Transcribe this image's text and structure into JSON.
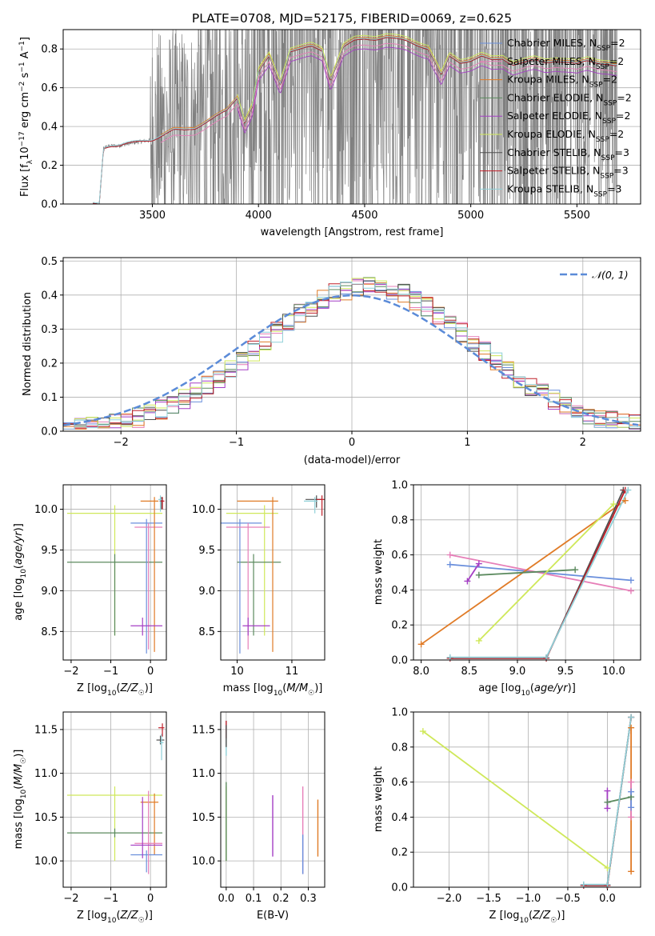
{
  "colors": {
    "Chabrier MILES": "#6a8fdc",
    "Salpeter MILES": "#e67fb8",
    "Kroupa MILES": "#e07b27",
    "Chabrier ELODIE": "#5b8a5e",
    "Salpeter ELODIE": "#a43fc4",
    "Kroupa ELODIE": "#cfe85a",
    "Chabrier STELIB": "#505050",
    "Salpeter STELIB": "#c0202a",
    "Kroupa STELIB": "#8fd0d8",
    "data": "#808080",
    "normal": "#5b8bd8"
  },
  "chart_data": [
    {
      "id": "spectrum",
      "type": "line",
      "title": "PLATE=0708, MJD=52175, FIBERID=0069, z=0.625",
      "xlabel": "wavelength [Angstrom, rest frame]",
      "ylabel": "Flux [f_λ 10^-17 erg cm^-2 s^-1 A^-1]",
      "xlim": [
        3080,
        5800
      ],
      "ylim": [
        0,
        0.9
      ],
      "xticks": [
        3500,
        4000,
        4500,
        5000,
        5500
      ],
      "yticks": [
        0.0,
        0.2,
        0.4,
        0.6,
        0.8
      ],
      "grid": true,
      "legend_position": "top-right",
      "legend": [
        {
          "label": "Chabrier MILES, N",
          "sub": "SSP",
          "suffix": "=2",
          "series": "Chabrier MILES"
        },
        {
          "label": "Salpeter MILES, N",
          "sub": "SSP",
          "suffix": "=2",
          "series": "Salpeter MILES"
        },
        {
          "label": "Kroupa MILES, N",
          "sub": "SSP",
          "suffix": "=2",
          "series": "Kroupa MILES"
        },
        {
          "label": "Chabrier ELODIE, N",
          "sub": "SSP",
          "suffix": "=2",
          "series": "Chabrier ELODIE"
        },
        {
          "label": "Salpeter ELODIE, N",
          "sub": "SSP",
          "suffix": "=2",
          "series": "Salpeter ELODIE"
        },
        {
          "label": "Kroupa ELODIE, N",
          "sub": "SSP",
          "suffix": "=2",
          "series": "Kroupa ELODIE"
        },
        {
          "label": "Chabrier STELIB, N",
          "sub": "SSP",
          "suffix": "=3",
          "series": "Chabrier STELIB"
        },
        {
          "label": "Salpeter STELIB, N",
          "sub": "SSP",
          "suffix": "=3",
          "series": "Salpeter STELIB"
        },
        {
          "label": "Kroupa STELIB, N",
          "sub": "SSP",
          "suffix": "=3",
          "series": "Kroupa STELIB"
        }
      ],
      "continuum": {
        "x": [
          3250,
          3270,
          3300,
          3340,
          3380,
          3430,
          3500,
          3560,
          3600,
          3650,
          3700,
          3750,
          3800,
          3850,
          3900,
          3935,
          3970,
          4000,
          4050,
          4102,
          4150,
          4200,
          4250,
          4300,
          4340,
          4400,
          4450,
          4500,
          4550,
          4600,
          4650,
          4700,
          4750,
          4800,
          4861,
          4900,
          4950,
          5000,
          5050,
          5100,
          5150,
          5200,
          5250,
          5300,
          5350,
          5400,
          5450,
          5500,
          5550,
          5600,
          5650,
          5680
        ],
        "y": [
          0.0,
          0.29,
          0.3,
          0.3,
          0.31,
          0.32,
          0.33,
          0.36,
          0.38,
          0.38,
          0.39,
          0.42,
          0.45,
          0.48,
          0.55,
          0.42,
          0.5,
          0.68,
          0.76,
          0.62,
          0.79,
          0.8,
          0.81,
          0.79,
          0.64,
          0.81,
          0.84,
          0.85,
          0.85,
          0.86,
          0.85,
          0.84,
          0.82,
          0.8,
          0.66,
          0.76,
          0.73,
          0.74,
          0.76,
          0.74,
          0.75,
          0.72,
          0.73,
          0.74,
          0.73,
          0.74,
          0.73,
          0.72,
          0.74,
          0.73,
          0.72,
          0.71
        ]
      },
      "model_offsets": {
        "Chabrier MILES": 0.0,
        "Salpeter MILES": -0.03,
        "Kroupa MILES": 0.01,
        "Chabrier ELODIE": 0.0,
        "Salpeter ELODIE": -0.05,
        "Kroupa ELODIE": 0.02,
        "Chabrier STELIB": 0.0,
        "Salpeter STELIB": 0.0,
        "Kroupa STELIB": 0.005
      },
      "model_start": {
        "Chabrier MILES": 3540,
        "Salpeter MILES": 3540,
        "Kroupa MILES": 3540,
        "Chabrier ELODIE": 3900,
        "Salpeter ELODIE": 3900,
        "Kroupa ELODIE": 3900,
        "Chabrier STELIB": 3220,
        "Salpeter STELIB": 3220,
        "Kroupa STELIB": 3220
      }
    },
    {
      "id": "residuals",
      "type": "bar",
      "xlabel": "(data-model)/error",
      "ylabel": "Normed distribution",
      "xlim": [
        -2.5,
        2.5
      ],
      "ylim": [
        0,
        0.51
      ],
      "xticks": [
        -2,
        -1,
        0,
        1,
        2
      ],
      "yticks": [
        0.0,
        0.1,
        0.2,
        0.3,
        0.4,
        0.5
      ],
      "grid": true,
      "legend_position": "top-right",
      "normal_label": "𝒩(0, 1)"
    },
    {
      "id": "age_vs_Z",
      "type": "scatter",
      "xlabel": "Z [log10(Z/Z☉)]",
      "ylabel": "age [log10(age/yr)]",
      "xlim": [
        -2.2,
        0.4
      ],
      "ylim": [
        8.15,
        10.3
      ],
      "xticks": [
        -2,
        -1,
        0
      ],
      "yticks": [
        8.5,
        9.0,
        9.5,
        10.0
      ],
      "grid": true
    },
    {
      "id": "age_vs_mass",
      "type": "scatter",
      "xlabel": "mass [log10(M/M☉)]",
      "ylabel": "",
      "xlim": [
        9.7,
        11.6
      ],
      "ylim": [
        8.15,
        10.3
      ],
      "xticks": [
        10,
        11
      ],
      "yticks": [
        8.5,
        9.0,
        9.5,
        10.0
      ],
      "grid": true
    },
    {
      "id": "massweight_vs_age",
      "type": "line",
      "xlabel": "age [log10(age/yr)]",
      "ylabel": "mass weight",
      "xlim": [
        7.92,
        10.28
      ],
      "ylim": [
        0,
        1.0
      ],
      "xticks": [
        8.0,
        8.5,
        9.0,
        9.5,
        10.0
      ],
      "yticks": [
        0.0,
        0.2,
        0.4,
        0.6,
        0.8,
        1.0
      ],
      "grid": true,
      "series": [
        {
          "name": "Chabrier MILES",
          "x": [
            8.3,
            10.18
          ],
          "y": [
            0.545,
            0.455
          ]
        },
        {
          "name": "Salpeter MILES",
          "x": [
            8.3,
            10.18
          ],
          "y": [
            0.6,
            0.395
          ]
        },
        {
          "name": "Kroupa MILES",
          "x": [
            8.0,
            10.12
          ],
          "y": [
            0.09,
            0.91
          ]
        },
        {
          "name": "Chabrier ELODIE",
          "x": [
            8.6,
            9.6
          ],
          "y": [
            0.485,
            0.515
          ]
        },
        {
          "name": "Salpeter ELODIE",
          "x": [
            8.48,
            8.6
          ],
          "y": [
            0.45,
            0.55
          ]
        },
        {
          "name": "Kroupa ELODIE",
          "x": [
            8.6,
            10.0
          ],
          "y": [
            0.11,
            0.89
          ]
        },
        {
          "name": "Chabrier STELIB",
          "x": [
            8.3,
            9.3,
            10.1
          ],
          "y": [
            0.01,
            0.01,
            0.97
          ]
        },
        {
          "name": "Salpeter STELIB",
          "x": [
            8.3,
            9.3,
            10.12
          ],
          "y": [
            0.01,
            0.01,
            0.97
          ]
        },
        {
          "name": "Kroupa STELIB",
          "x": [
            8.3,
            9.3,
            10.15
          ],
          "y": [
            0.015,
            0.015,
            0.97
          ]
        }
      ]
    },
    {
      "id": "mass_vs_Z",
      "type": "scatter",
      "xlabel": "Z [log10(Z/Z☉)]",
      "ylabel": "mass [log10(M/M☉)]",
      "xlim": [
        -2.2,
        0.4
      ],
      "ylim": [
        9.7,
        11.7
      ],
      "xticks": [
        -2,
        -1,
        0
      ],
      "yticks": [
        10.0,
        10.5,
        11.0,
        11.5
      ],
      "grid": true
    },
    {
      "id": "mass_vs_ebv",
      "type": "scatter",
      "xlabel": "E(B-V)",
      "ylabel": "",
      "xlim": [
        -0.02,
        0.36
      ],
      "ylim": [
        9.7,
        11.7
      ],
      "xticks": [
        0.0,
        0.1,
        0.2,
        0.3
      ],
      "yticks": [
        10.0,
        10.5,
        11.0,
        11.5
      ],
      "grid": true
    },
    {
      "id": "massweight_vs_Z",
      "type": "line",
      "xlabel": "Z [log10(Z/Z☉)]",
      "ylabel": "mass weight",
      "xlim": [
        -2.45,
        0.42
      ],
      "ylim": [
        0,
        1.0
      ],
      "xticks": [
        -2.0,
        -1.5,
        -1.0,
        -0.5,
        0.0
      ],
      "yticks": [
        0.0,
        0.2,
        0.4,
        0.6,
        0.8,
        1.0
      ],
      "grid": true,
      "series": [
        {
          "name": "Kroupa ELODIE",
          "x": [
            -2.33,
            0.0
          ],
          "y": [
            0.89,
            0.11
          ]
        },
        {
          "name": "Chabrier ELODIE",
          "x": [
            0.0,
            0.3
          ],
          "y": [
            0.485,
            0.515
          ]
        },
        {
          "name": "Salpeter ELODIE",
          "x": [
            0.0,
            0.0
          ],
          "y": [
            0.45,
            0.55
          ]
        },
        {
          "name": "Kroupa MILES",
          "x": [
            0.3,
            0.3
          ],
          "y": [
            0.09,
            0.91
          ]
        },
        {
          "name": "Salpeter MILES",
          "x": [
            0.3,
            0.3
          ],
          "y": [
            0.4,
            0.6
          ]
        },
        {
          "name": "Chabrier MILES",
          "x": [
            0.3,
            0.3
          ],
          "y": [
            0.455,
            0.545
          ]
        },
        {
          "name": "Chabrier STELIB",
          "x": [
            -0.3,
            0.0,
            0.3
          ],
          "y": [
            0.01,
            0.01,
            0.97
          ]
        },
        {
          "name": "Salpeter STELIB",
          "x": [
            -0.3,
            0.0,
            0.3
          ],
          "y": [
            0.01,
            0.01,
            0.97
          ]
        },
        {
          "name": "Kroupa STELIB",
          "x": [
            -0.3,
            0.0,
            0.3
          ],
          "y": [
            0.015,
            0.015,
            0.97
          ]
        }
      ]
    }
  ]
}
